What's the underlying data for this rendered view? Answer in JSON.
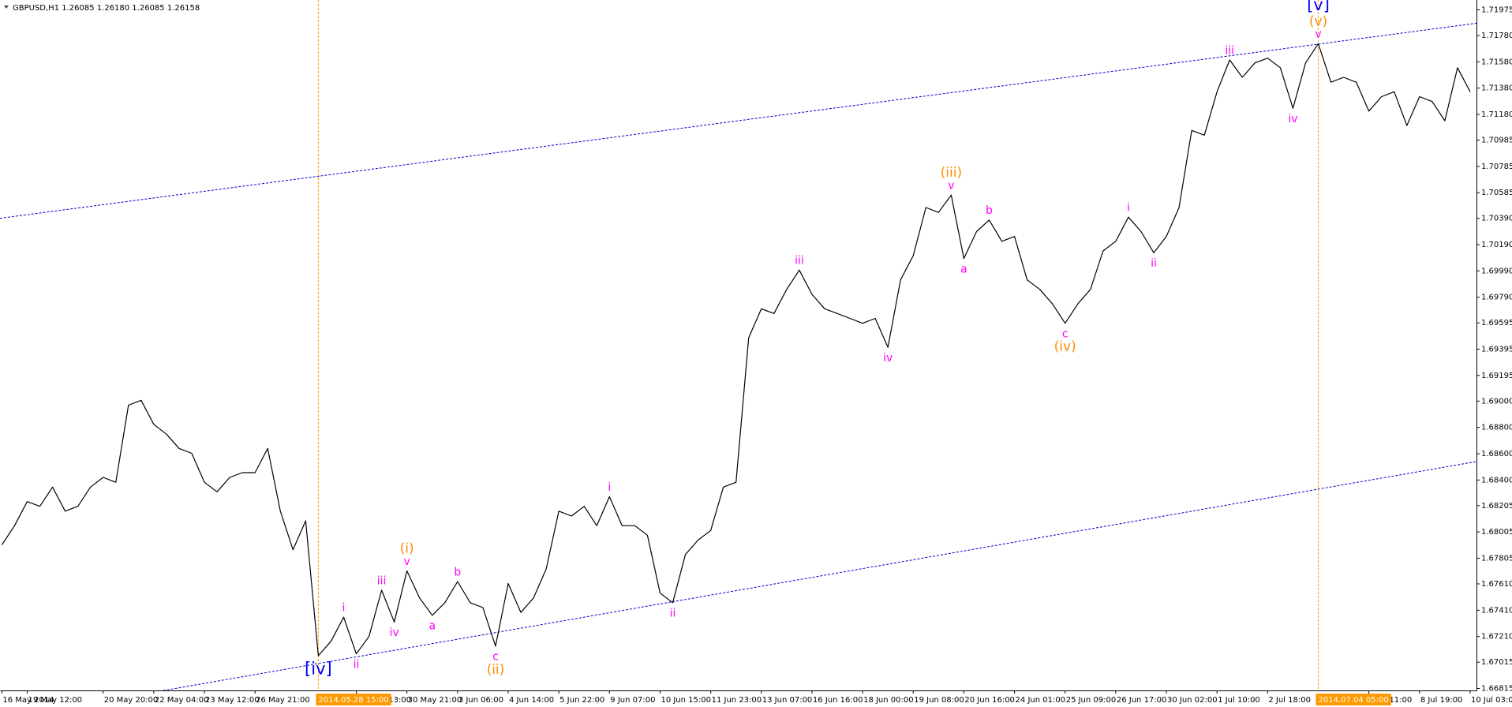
{
  "chart_data": {
    "type": "line",
    "title": "GBPUSD,H1 1.26085 1.26180 1.26085 1.26158",
    "color": "#000000",
    "grid": false,
    "ylim": [
      1.668,
      1.7205
    ],
    "yticks": [
      1.71975,
      {
        "value": 1.7178,
        "label": "1.71780"
      },
      {
        "value": 1.7158,
        "label": "1.71580"
      },
      {
        "value": 1.7138,
        "label": "1.71380"
      },
      {
        "value": 1.7118,
        "label": "1.71180"
      },
      1.70985,
      1.70785,
      1.70585,
      {
        "value": 1.7039,
        "label": "1.70390"
      },
      {
        "value": 1.7019,
        "label": "1.70190"
      },
      {
        "value": 1.6999,
        "label": "1.69990"
      },
      {
        "value": 1.6979,
        "label": "1.69790"
      },
      1.69595,
      1.69395,
      1.69195,
      {
        "value": 1.69,
        "label": "1.69000"
      },
      {
        "value": 1.688,
        "label": "1.68800"
      },
      {
        "value": 1.686,
        "label": "1.68600"
      },
      {
        "value": 1.684,
        "label": "1.68400"
      },
      1.68205,
      1.68005,
      1.67805,
      {
        "value": 1.6761,
        "label": "1.67610"
      },
      {
        "value": 1.6741,
        "label": "1.67410"
      },
      {
        "value": 1.6721,
        "label": "1.67210"
      },
      1.67015,
      1.66815
    ],
    "categories": [
      "16 May 2014",
      null,
      "19 May 12:00",
      null,
      null,
      null,
      null,
      null,
      "20 May 20:00",
      null,
      null,
      null,
      "22 May 04:00",
      null,
      null,
      null,
      "23 May 12:00",
      null,
      null,
      null,
      "26 May 21:00",
      null,
      null,
      null,
      null,
      {
        "label": "2014.05.28 15:00",
        "vline": true
      },
      null,
      null,
      "29 May 13:00",
      null,
      null,
      null,
      "30 May 21:00",
      null,
      null,
      null,
      "3 Jun 06:00",
      null,
      null,
      null,
      "4 Jun 14:00",
      null,
      null,
      null,
      "5 Jun 22:00",
      null,
      null,
      null,
      "9 Jun 07:00",
      null,
      null,
      null,
      "10 Jun 15:00",
      null,
      null,
      null,
      "11 Jun 23:00",
      null,
      null,
      null,
      "13 Jun 07:00",
      null,
      null,
      null,
      "16 Jun 16:00",
      null,
      null,
      null,
      "18 Jun 00:00",
      null,
      null,
      null,
      "19 Jun 08:00",
      null,
      null,
      null,
      "20 Jun 16:00",
      null,
      null,
      null,
      "24 Jun 01:00",
      null,
      null,
      null,
      "25 Jun 09:00",
      null,
      null,
      null,
      "26 Jun 17:00",
      null,
      null,
      null,
      "30 Jun 02:00",
      null,
      null,
      null,
      "1 Jul 10:00",
      null,
      null,
      null,
      "2 Jul 18:00",
      null,
      null,
      null,
      {
        "label": "2014.07.04 05:00",
        "vline": true
      },
      null,
      null,
      null,
      "7 Jul 11:00",
      null,
      null,
      null,
      "8 Jul 19:00",
      null,
      null,
      null,
      "10 Jul 03:00"
    ],
    "values": [
      1.67907,
      1.68053,
      1.68236,
      1.682,
      1.68346,
      1.68163,
      1.682,
      1.68346,
      1.6842,
      1.68383,
      1.68969,
      1.69006,
      1.68823,
      1.68749,
      1.6864,
      1.68603,
      1.68383,
      1.6831,
      1.6842,
      1.68456,
      1.68456,
      1.6864,
      1.68163,
      1.6787,
      1.6809,
      1.67064,
      1.67174,
      1.67357,
      1.67078,
      1.6721,
      1.67562,
      1.6732,
      1.67709,
      1.67503,
      1.67371,
      1.67467,
      1.67628,
      1.67467,
      1.6743,
      1.67137,
      1.67613,
      1.67393,
      1.67503,
      1.67723,
      1.68163,
      1.68126,
      1.682,
      1.68053,
      1.68273,
      1.68053,
      1.68053,
      1.6798,
      1.6754,
      1.67467,
      1.67833,
      1.67943,
      1.68016,
      1.68346,
      1.68383,
      1.69482,
      1.69702,
      1.69666,
      1.69849,
      1.69996,
      1.69812,
      1.69702,
      1.69666,
      1.69629,
      1.69592,
      1.69629,
      1.69409,
      1.69922,
      1.70106,
      1.70472,
      1.70435,
      1.70567,
      1.70084,
      1.70289,
      1.70377,
      1.70215,
      1.70252,
      1.69922,
      1.69849,
      1.69739,
      1.69592,
      1.69739,
      1.69849,
      1.70142,
      1.70215,
      1.70399,
      1.70289,
      1.70128,
      1.70252,
      1.70472,
      1.71058,
      1.71022,
      1.71352,
      1.71594,
      1.71462,
      1.71572,
      1.71608,
      1.71535,
      1.71227,
      1.71572,
      1.71718,
      1.71425,
      1.71462,
      1.71425,
      1.71205,
      1.71315,
      1.71352,
      1.71095,
      1.71315,
      1.71278,
      1.71132,
      1.71535,
      1.71352
    ],
    "channel_lines": [
      {
        "color": "#0000cc",
        "values": [
          1.70392,
          1.71867
        ]
      },
      {
        "color": "#0000cc",
        "values": [
          1.66585,
          1.68532
        ]
      }
    ],
    "vline_color": "#ff9900",
    "degree_colors": {
      "minor": "#ff00ff",
      "intermediate": "#ff8c00",
      "primary": "#0000ff"
    },
    "labels_above": [
      null,
      null,
      null,
      null,
      null,
      null,
      null,
      null,
      null,
      null,
      null,
      null,
      null,
      null,
      null,
      null,
      null,
      null,
      null,
      null,
      null,
      null,
      null,
      null,
      null,
      null,
      null,
      [
        {
          "text": "i",
          "degree": "minor"
        }
      ],
      null,
      null,
      [
        {
          "text": "iii",
          "degree": "minor"
        }
      ],
      null,
      [
        {
          "text": "(i)",
          "degree": "intermediate"
        },
        {
          "text": "v",
          "degree": "minor"
        }
      ],
      null,
      null,
      null,
      [
        {
          "text": "b",
          "degree": "minor"
        }
      ],
      null,
      null,
      null,
      null,
      null,
      null,
      null,
      null,
      null,
      null,
      null,
      [
        {
          "text": "i",
          "degree": "minor"
        }
      ],
      null,
      null,
      null,
      null,
      null,
      null,
      null,
      null,
      null,
      null,
      null,
      null,
      null,
      null,
      [
        {
          "text": "iii",
          "degree": "minor"
        }
      ],
      null,
      null,
      null,
      null,
      null,
      null,
      null,
      null,
      null,
      null,
      null,
      [
        {
          "text": "(iii)",
          "degree": "intermediate"
        },
        {
          "text": "v",
          "degree": "minor"
        }
      ],
      null,
      null,
      [
        {
          "text": "b",
          "degree": "minor"
        }
      ],
      null,
      null,
      null,
      null,
      null,
      null,
      null,
      null,
      null,
      null,
      [
        {
          "text": "i",
          "degree": "minor"
        }
      ],
      null,
      null,
      null,
      null,
      null,
      null,
      null,
      [
        {
          "text": "iii",
          "degree": "minor"
        }
      ],
      null,
      null,
      null,
      null,
      null,
      null,
      [
        {
          "text": "[v]",
          "degree": "primary"
        },
        {
          "text": "(v)",
          "degree": "intermediate"
        },
        {
          "text": "v",
          "degree": "minor"
        }
      ],
      null,
      null,
      null,
      null,
      null,
      null,
      null,
      null,
      null,
      null,
      null,
      null
    ],
    "labels_below": [
      null,
      null,
      null,
      null,
      null,
      null,
      null,
      null,
      null,
      null,
      null,
      null,
      null,
      null,
      null,
      null,
      null,
      null,
      null,
      null,
      null,
      null,
      null,
      null,
      null,
      [
        {
          "text": "[iv]",
          "degree": "primary"
        }
      ],
      null,
      null,
      [
        {
          "text": "ii",
          "degree": "minor"
        }
      ],
      null,
      null,
      [
        {
          "text": "iv",
          "degree": "minor"
        }
      ],
      null,
      null,
      [
        {
          "text": "a",
          "degree": "minor"
        }
      ],
      null,
      null,
      null,
      null,
      [
        {
          "text": "c",
          "degree": "minor"
        },
        {
          "text": "(ii)",
          "degree": "intermediate"
        }
      ],
      null,
      null,
      null,
      null,
      null,
      null,
      null,
      null,
      null,
      null,
      null,
      null,
      null,
      [
        {
          "text": "ii",
          "degree": "minor"
        }
      ],
      null,
      null,
      null,
      null,
      null,
      null,
      null,
      null,
      null,
      null,
      null,
      null,
      null,
      null,
      null,
      null,
      [
        {
          "text": "iv",
          "degree": "minor"
        }
      ],
      null,
      null,
      null,
      null,
      null,
      [
        {
          "text": "a",
          "degree": "minor"
        }
      ],
      null,
      null,
      null,
      null,
      null,
      null,
      null,
      [
        {
          "text": "c",
          "degree": "minor"
        },
        {
          "text": "(iv)",
          "degree": "intermediate"
        }
      ],
      null,
      null,
      null,
      null,
      null,
      null,
      [
        {
          "text": "ii",
          "degree": "minor"
        }
      ],
      null,
      null,
      null,
      null,
      null,
      null,
      null,
      null,
      null,
      null,
      [
        {
          "text": "iv",
          "degree": "minor"
        }
      ],
      null,
      null,
      null,
      null,
      null,
      null,
      null,
      null,
      null,
      null,
      null,
      null,
      null,
      null
    ]
  }
}
